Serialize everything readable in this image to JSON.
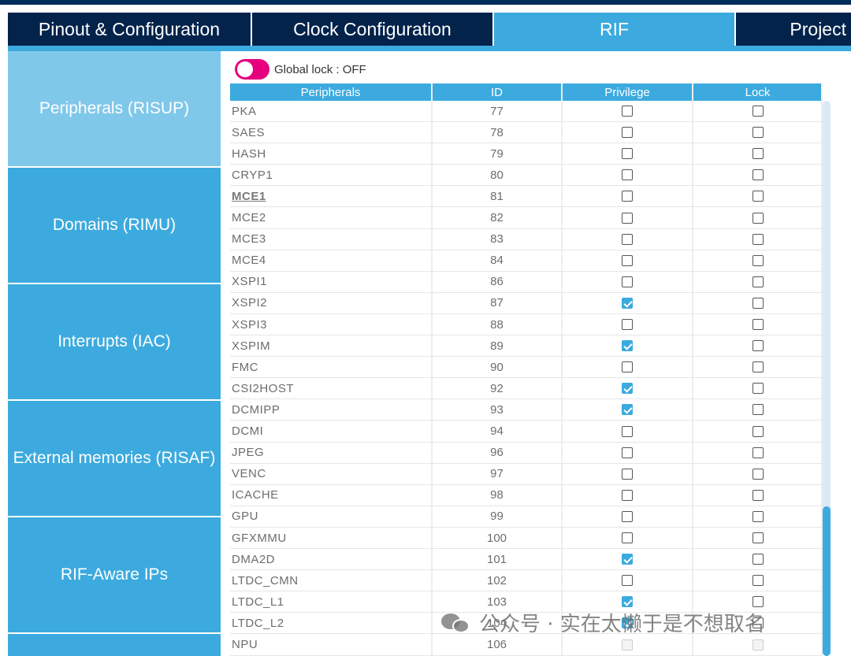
{
  "tabs": [
    {
      "label": "Pinout & Configuration",
      "active": false
    },
    {
      "label": "Clock Configuration",
      "active": false
    },
    {
      "label": "RIF",
      "active": true
    },
    {
      "label": "Project",
      "active": false
    }
  ],
  "sidebar": {
    "items": [
      {
        "label": "Peripherals (RISUP)",
        "active": true
      },
      {
        "label": "Domains (RIMU)",
        "active": false
      },
      {
        "label": "Interrupts (IAC)",
        "active": false
      },
      {
        "label": "External memories (RISAF)",
        "active": false
      },
      {
        "label": "RIF-Aware IPs",
        "active": false
      },
      {
        "label": "",
        "active": false
      }
    ]
  },
  "global_lock": {
    "label": "Global lock : OFF",
    "on": false
  },
  "table": {
    "headers": [
      "Peripherals",
      "ID",
      "Privilege",
      "Lock"
    ],
    "rows": [
      {
        "name": "PKA",
        "id": "77",
        "privilege": false,
        "lock": false
      },
      {
        "name": "SAES",
        "id": "78",
        "privilege": false,
        "lock": false
      },
      {
        "name": "HASH",
        "id": "79",
        "privilege": false,
        "lock": false
      },
      {
        "name": "CRYP1",
        "id": "80",
        "privilege": false,
        "lock": false
      },
      {
        "name": "MCE1",
        "id": "81",
        "privilege": false,
        "lock": false,
        "selected": true
      },
      {
        "name": "MCE2",
        "id": "82",
        "privilege": false,
        "lock": false
      },
      {
        "name": "MCE3",
        "id": "83",
        "privilege": false,
        "lock": false
      },
      {
        "name": "MCE4",
        "id": "84",
        "privilege": false,
        "lock": false
      },
      {
        "name": "XSPI1",
        "id": "86",
        "privilege": false,
        "lock": false
      },
      {
        "name": "XSPI2",
        "id": "87",
        "privilege": true,
        "lock": false
      },
      {
        "name": "XSPI3",
        "id": "88",
        "privilege": false,
        "lock": false
      },
      {
        "name": "XSPIM",
        "id": "89",
        "privilege": true,
        "lock": false
      },
      {
        "name": "FMC",
        "id": "90",
        "privilege": false,
        "lock": false
      },
      {
        "name": "CSI2HOST",
        "id": "92",
        "privilege": true,
        "lock": false
      },
      {
        "name": "DCMIPP",
        "id": "93",
        "privilege": true,
        "lock": false
      },
      {
        "name": "DCMI",
        "id": "94",
        "privilege": false,
        "lock": false
      },
      {
        "name": "JPEG",
        "id": "96",
        "privilege": false,
        "lock": false
      },
      {
        "name": "VENC",
        "id": "97",
        "privilege": false,
        "lock": false
      },
      {
        "name": "ICACHE",
        "id": "98",
        "privilege": false,
        "lock": false
      },
      {
        "name": "GPU",
        "id": "99",
        "privilege": false,
        "lock": false
      },
      {
        "name": "GFXMMU",
        "id": "100",
        "privilege": false,
        "lock": false
      },
      {
        "name": "DMA2D",
        "id": "101",
        "privilege": true,
        "lock": false
      },
      {
        "name": "LTDC_CMN",
        "id": "102",
        "privilege": false,
        "lock": false
      },
      {
        "name": "LTDC_L1",
        "id": "103",
        "privilege": true,
        "lock": false
      },
      {
        "name": "LTDC_L2",
        "id": "104",
        "privilege": true,
        "lock": false
      },
      {
        "name": "NPU",
        "id": "106",
        "privilege": false,
        "lock": false,
        "disabled": true
      }
    ]
  },
  "watermark": {
    "text": "公众号 · 实在太懒于是不想取名",
    "icon": "wechat-icon"
  },
  "colors": {
    "tab_dark": "#03234b",
    "accent": "#3caade",
    "sidebar_active": "#80c8ea",
    "toggle": "#e6007e"
  }
}
